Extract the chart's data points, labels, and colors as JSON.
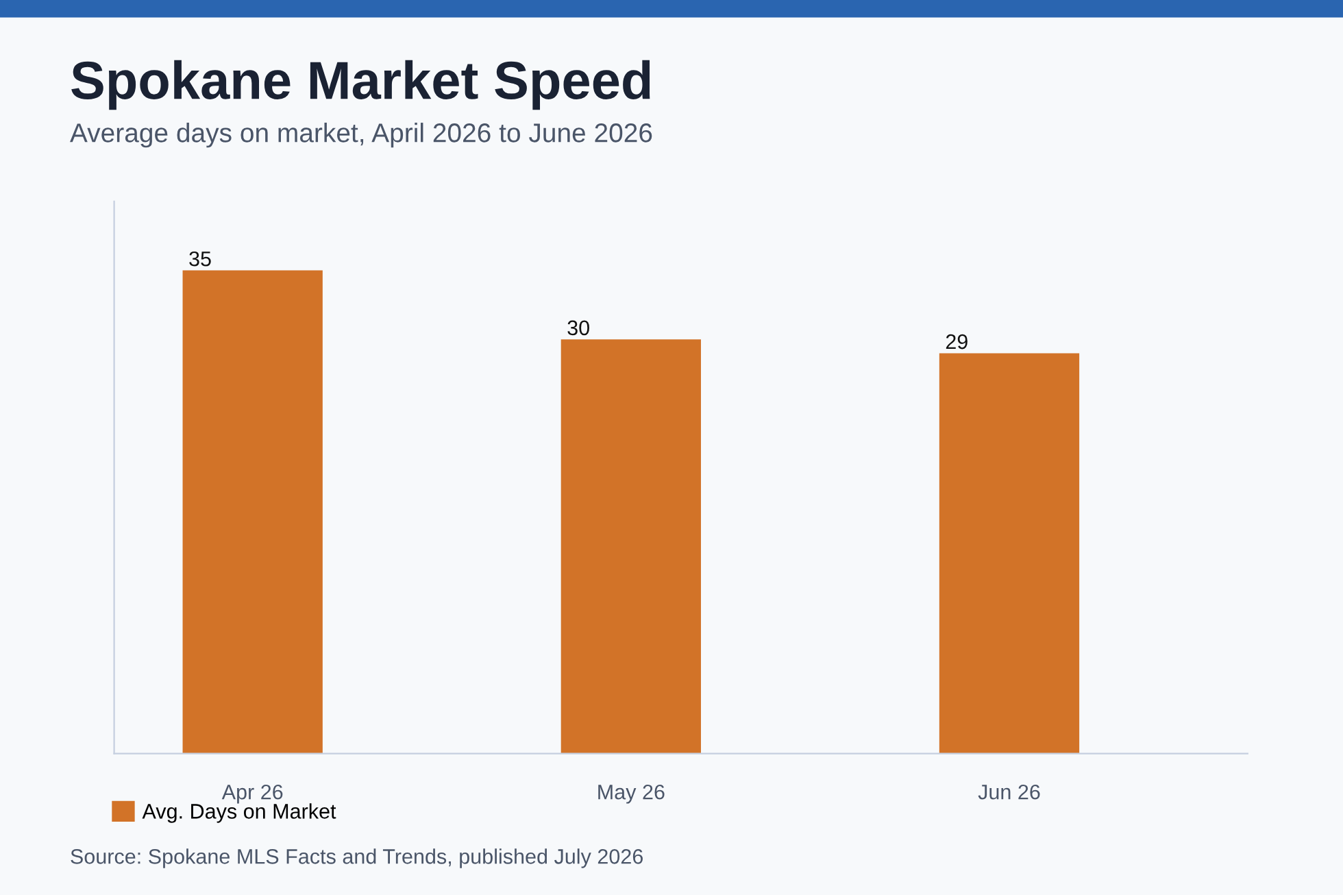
{
  "chart_data": {
    "type": "bar",
    "title": "Spokane Market Speed",
    "subtitle": "Average days on market, April 2026 to June 2026",
    "categories": [
      "Apr 26",
      "May 26",
      "Jun 26"
    ],
    "series": [
      {
        "name": "Avg. Days on Market",
        "color": "#d27328",
        "values": [
          35,
          30,
          29
        ]
      }
    ],
    "ylim": [
      0,
      40
    ],
    "data_labels": true,
    "grid": false,
    "legend": "bottom left",
    "annotations": [
      "Source: Spokane MLS Facts and Trends, published July 2026"
    ]
  }
}
